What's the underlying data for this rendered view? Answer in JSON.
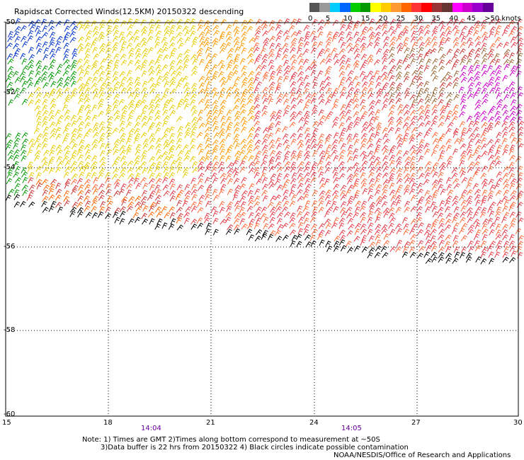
{
  "title": "Rapidscat Corrected Winds(12.5KM) 20150322 descending",
  "legend": {
    "bins": [
      {
        "color": "#555555"
      },
      {
        "color": "#999999"
      },
      {
        "color": "#00ccff"
      },
      {
        "color": "#0066ff"
      },
      {
        "color": "#00cc00"
      },
      {
        "color": "#009900"
      },
      {
        "color": "#ffff00"
      },
      {
        "color": "#ffcc00"
      },
      {
        "color": "#ff9933"
      },
      {
        "color": "#ff6600"
      },
      {
        "color": "#ff3333"
      },
      {
        "color": "#ff0000"
      },
      {
        "color": "#993333"
      },
      {
        "color": "#663333"
      },
      {
        "color": "#ff00ff"
      },
      {
        "color": "#cc00cc"
      },
      {
        "color": "#9900cc"
      },
      {
        "color": "#660099"
      }
    ],
    "labels": [
      "0",
      "5",
      "10",
      "15",
      "20",
      "25",
      "30",
      "35",
      "40",
      "45",
      ">50 knots"
    ]
  },
  "axes": {
    "lat_labels": [
      "-50",
      "-52",
      "-54",
      "-56",
      "-58",
      "-60"
    ],
    "lon_labels": [
      "15",
      "18",
      "21",
      "24",
      "27",
      "30"
    ],
    "times": [
      "14:04",
      "14:05"
    ]
  },
  "notes": {
    "line1": "Note: 1) Times are GMT 2)Times along bottom correspond to measurement at ~50S",
    "line2": "3)Data buffer is 22 hrs from 20150322 4) Black circles indicate possible contamination",
    "credit": "NOAA/NESDIS/Office of Research and Applications"
  }
}
